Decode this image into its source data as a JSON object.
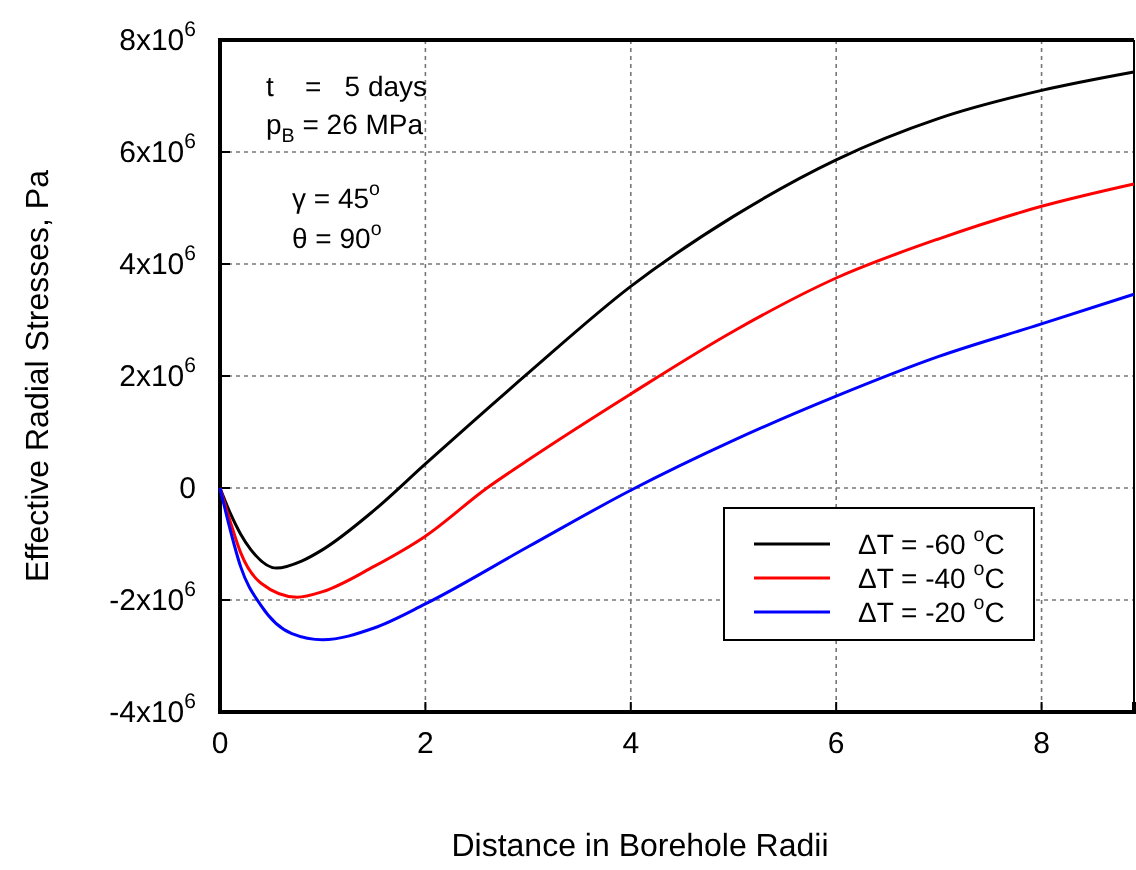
{
  "chart_data": {
    "type": "line",
    "xlabel": "Distance in Borehole Radii",
    "ylabel": "Effective Radial Stresses, Pa",
    "xlim": [
      0,
      8.9
    ],
    "xticks": [
      0,
      2,
      4,
      6,
      8
    ],
    "ylim": [
      -4000000,
      8000000
    ],
    "yticks": [
      {
        "value": -4000000,
        "label": "-4x10$^{6}$"
      },
      {
        "value": -2000000,
        "label": "-2x10$^{6}$"
      },
      0,
      {
        "value": 2000000,
        "label": "2x10$^{6}$"
      },
      {
        "value": 4000000,
        "label": "4x10$^{6}$"
      },
      {
        "value": 6000000,
        "label": "6x10$^{6}$"
      },
      {
        "value": 8000000,
        "label": "8x10$^{6}$"
      }
    ],
    "grid": true,
    "legend": "bottom right",
    "line_style": "solid",
    "marker": "none",
    "annotations": [
      "t    =   5 days",
      "p$_{B}$ = 26 MPa",
      "γ = 45$^{o}$",
      "θ = 90$^{o}$"
    ],
    "series": [
      {
        "name": "ΔT = -60 $^{o}$C",
        "color": "#000000",
        "x": [
          0,
          0.1,
          0.2,
          0.3,
          0.55,
          0.8,
          1,
          1.5,
          2,
          3,
          4,
          5,
          6,
          7,
          8,
          8.9
        ],
        "values": [
          0,
          -450000,
          -820000,
          -1100000,
          -1430000,
          -1300000,
          -1100000,
          -400000,
          430000,
          2050000,
          3600000,
          4850000,
          5860000,
          6600000,
          7100000,
          7430000
        ]
      },
      {
        "name": "ΔT = -40 $^{o}$C",
        "color": "#ff0000",
        "x": [
          0,
          0.1,
          0.2,
          0.4,
          0.75,
          1,
          1.5,
          2,
          2.6,
          3,
          4,
          5,
          6,
          7,
          8,
          8.9
        ],
        "values": [
          0,
          -600000,
          -1150000,
          -1700000,
          -1950000,
          -1850000,
          -1400000,
          -860000,
          0,
          500000,
          1680000,
          2800000,
          3750000,
          4450000,
          5030000,
          5430000
        ]
      },
      {
        "name": "ΔT = -20 $^{o}$C",
        "color": "#0000ff",
        "x": [
          0,
          0.1,
          0.2,
          0.4,
          0.7,
          1,
          1.5,
          2,
          3,
          4,
          5,
          6,
          7,
          8,
          8.9
        ],
        "values": [
          0,
          -750000,
          -1400000,
          -2100000,
          -2600000,
          -2710000,
          -2500000,
          -2070000,
          -1050000,
          -40000,
          850000,
          1640000,
          2350000,
          2930000,
          3460000
        ]
      }
    ]
  }
}
